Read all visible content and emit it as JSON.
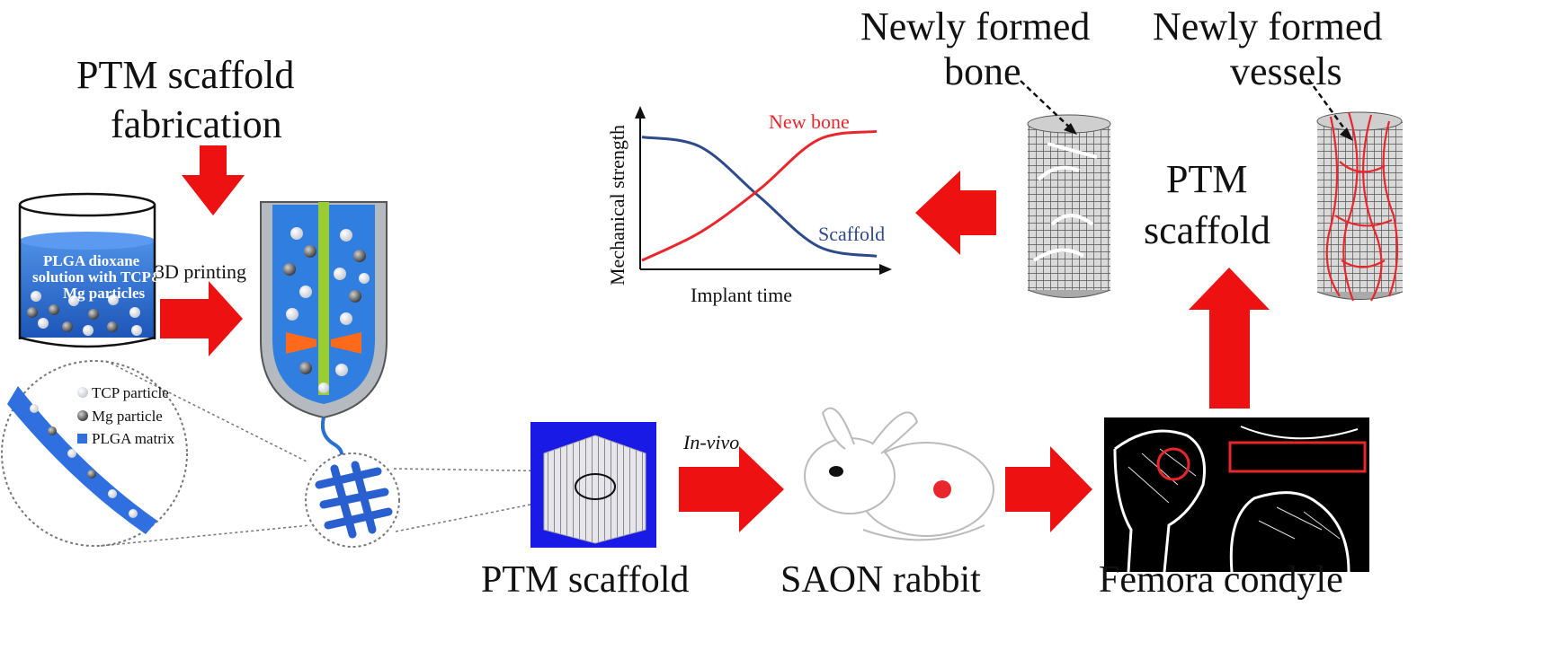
{
  "diagram": {
    "fabrication_title_line1": "PTM scaffold",
    "fabrication_title_line2": "fabrication",
    "beaker_text_line1": "PLGA dioxane",
    "beaker_text_line2": "solution with TCP&",
    "beaker_text_line3": "Mg particles",
    "printing_label": "3D printing",
    "legend": {
      "tcp": "TCP particle",
      "mg": "Mg particle",
      "plga": "PLGA matrix"
    },
    "invivo_label": "In-vivo",
    "scaffold_caption": "PTM scaffold",
    "rabbit_caption": "SAON rabbit",
    "femora_caption": "Femora condyle",
    "bone_label_line1": "Newly formed",
    "bone_label_line2": "bone",
    "vessels_label_line1": "Newly formed",
    "vessels_label_line2": "vessels",
    "ptm_scaffold_line1": "PTM",
    "ptm_scaffold_line2": "scaffold",
    "colors": {
      "arrow": "#ee1111",
      "blue": "#2a6fd6",
      "new_bone_curve": "#e8262c",
      "scaffold_curve": "#2d4a8a"
    }
  },
  "chart_data": {
    "type": "line",
    "xlabel": "Implant time",
    "ylabel": "Mechanical strength",
    "grid": false,
    "series": [
      {
        "name": "New bone",
        "values": [
          0.05,
          0.25,
          0.55,
          0.9,
          0.96
        ]
      },
      {
        "name": "Scaffold",
        "values": [
          0.92,
          0.85,
          0.5,
          0.15,
          0.08
        ]
      }
    ]
  }
}
